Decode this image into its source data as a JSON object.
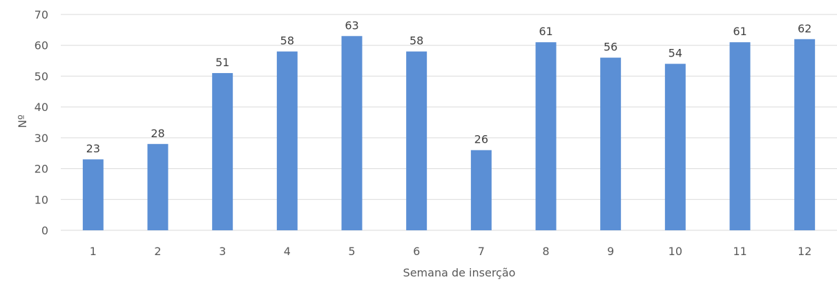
{
  "chart_data": {
    "type": "bar",
    "categories": [
      "1",
      "2",
      "3",
      "4",
      "5",
      "6",
      "7",
      "8",
      "9",
      "10",
      "11",
      "12"
    ],
    "values": [
      23,
      28,
      51,
      58,
      63,
      58,
      26,
      61,
      56,
      54,
      61,
      62
    ],
    "data_labels": [
      "23",
      "28",
      "51",
      "58",
      "63",
      "58",
      "26",
      "61",
      "56",
      "54",
      "61",
      "62"
    ],
    "yticks": [
      "0",
      "10",
      "20",
      "30",
      "40",
      "50",
      "60",
      "70"
    ],
    "ylim": [
      0,
      70
    ],
    "xlabel": "Semana de inserção",
    "ylabel": "Nº",
    "grid": true,
    "bar_color": "#5b8fd5",
    "grid_color": "#d9d9d9"
  }
}
